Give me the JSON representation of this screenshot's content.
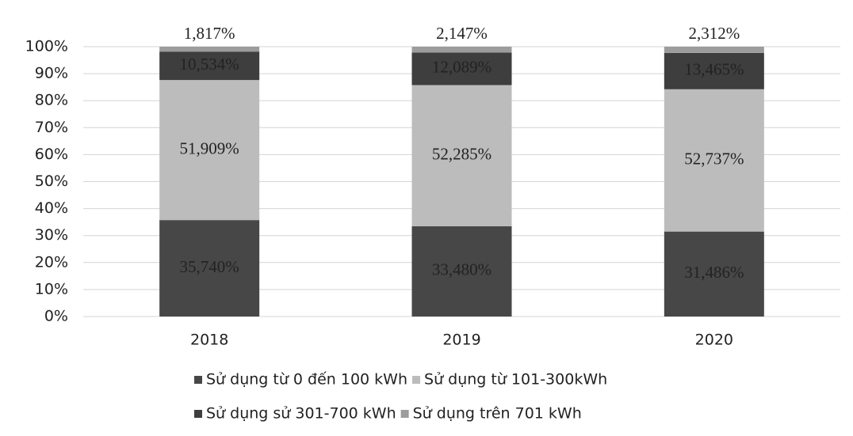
{
  "chart_data": {
    "type": "stacked_bar",
    "categories": [
      "2018",
      "2019",
      "2020"
    ],
    "series": [
      {
        "name": "Sử dụng từ 0 đến 100 kWh",
        "color": "#474747",
        "values": [
          35.74,
          33.48,
          31.486
        ],
        "value_labels": [
          "35,740%",
          "33,480%",
          "31,486%"
        ]
      },
      {
        "name": "Sử dụng từ 101-300kWh",
        "color": "#bcbcbc",
        "values": [
          51.909,
          52.285,
          52.737
        ],
        "value_labels": [
          "51,909%",
          "52,285%",
          "52,737%"
        ]
      },
      {
        "name": "Sử dụng sử 301-700 kWh",
        "color": "#3e3e3e",
        "values": [
          10.534,
          12.089,
          13.465
        ],
        "value_labels": [
          "10,534%",
          "12,089%",
          "13,465%"
        ]
      },
      {
        "name": "Sử dụng trên 701 kWh",
        "color": "#9c9c9c",
        "values": [
          1.817,
          2.147,
          2.312
        ],
        "value_labels": [
          "1,817%",
          "2,147%",
          "2,312%"
        ]
      }
    ],
    "ylim": [
      0,
      100
    ],
    "yticks": [
      {
        "value": 0,
        "label": "0%"
      },
      {
        "value": 10,
        "label": "10%"
      },
      {
        "value": 20,
        "label": "20%"
      },
      {
        "value": 30,
        "label": "30%"
      },
      {
        "value": 40,
        "label": "40%"
      },
      {
        "value": 50,
        "label": "50%"
      },
      {
        "value": 60,
        "label": "60%"
      },
      {
        "value": 70,
        "label": "70%"
      },
      {
        "value": 80,
        "label": "80%"
      },
      {
        "value": 90,
        "label": "90%"
      },
      {
        "value": 100,
        "label": "100%"
      }
    ],
    "grid": true
  }
}
